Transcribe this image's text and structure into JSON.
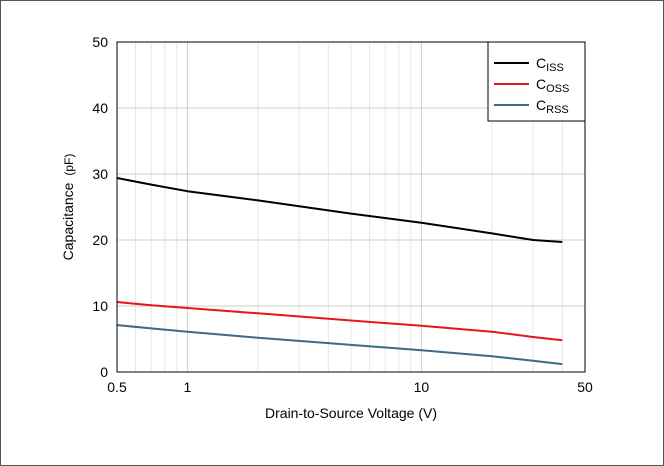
{
  "chart_data": {
    "type": "line",
    "title": "",
    "xlabel": "Drain-to-Source Voltage (V)",
    "ylabel_main": "Capacitance",
    "ylabel_unit": "(pF)",
    "x_scale": "log",
    "xlim": [
      0.5,
      50
    ],
    "ylim": [
      0,
      50
    ],
    "x_ticks": [
      0.5,
      1,
      10,
      50
    ],
    "x_tick_labels": [
      "0.5",
      "1",
      "10",
      "50"
    ],
    "y_ticks": [
      0,
      10,
      20,
      30,
      40,
      50
    ],
    "y_tick_labels": [
      "0",
      "10",
      "20",
      "30",
      "40",
      "50"
    ],
    "grid": true,
    "legend_position": "top-right",
    "series": [
      {
        "name_main": "C",
        "name_sub": "ISS",
        "color": "#000000",
        "x": [
          0.5,
          0.7,
          1,
          2,
          5,
          10,
          20,
          30,
          40
        ],
        "y": [
          29.4,
          28.4,
          27.4,
          26.0,
          24.0,
          22.6,
          21.0,
          20.0,
          19.7
        ]
      },
      {
        "name_main": "C",
        "name_sub": "OSS",
        "color": "#e8141b",
        "x": [
          0.5,
          0.7,
          1,
          2,
          5,
          10,
          20,
          30,
          40
        ],
        "y": [
          10.6,
          10.1,
          9.7,
          8.9,
          7.8,
          7.0,
          6.1,
          5.3,
          4.8
        ]
      },
      {
        "name_main": "C",
        "name_sub": "RSS",
        "color": "#3c6a86",
        "x": [
          0.5,
          0.7,
          1,
          2,
          5,
          10,
          20,
          30,
          40
        ],
        "y": [
          7.1,
          6.6,
          6.1,
          5.2,
          4.1,
          3.3,
          2.4,
          1.7,
          1.2
        ]
      }
    ]
  }
}
